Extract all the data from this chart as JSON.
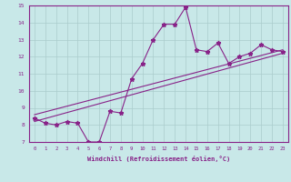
{
  "xlabel": "Windchill (Refroidissement éolien,°C)",
  "bg_color": "#c8e8e8",
  "line_color": "#882288",
  "grid_color": "#aacccc",
  "x_data": [
    0,
    1,
    2,
    3,
    4,
    5,
    6,
    7,
    8,
    9,
    10,
    11,
    12,
    13,
    14,
    15,
    16,
    17,
    18,
    19,
    20,
    21,
    22,
    23
  ],
  "y_data": [
    8.4,
    8.1,
    8.0,
    8.2,
    8.1,
    7.0,
    7.0,
    8.8,
    8.7,
    10.7,
    11.6,
    13.0,
    13.9,
    13.9,
    14.9,
    12.4,
    12.3,
    12.8,
    11.6,
    12.0,
    12.2,
    12.7,
    12.4,
    12.3
  ],
  "ylim": [
    7,
    15
  ],
  "xlim": [
    -0.5,
    23.5
  ],
  "yticks": [
    7,
    8,
    9,
    10,
    11,
    12,
    13,
    14,
    15
  ],
  "xticks": [
    0,
    1,
    2,
    3,
    4,
    5,
    6,
    7,
    8,
    9,
    10,
    11,
    12,
    13,
    14,
    15,
    16,
    17,
    18,
    19,
    20,
    21,
    22,
    23
  ],
  "trend1_x": [
    0,
    23
  ],
  "trend1_y": [
    8.2,
    12.2
  ],
  "trend2_x": [
    0,
    23
  ],
  "trend2_y": [
    8.6,
    12.4
  ]
}
